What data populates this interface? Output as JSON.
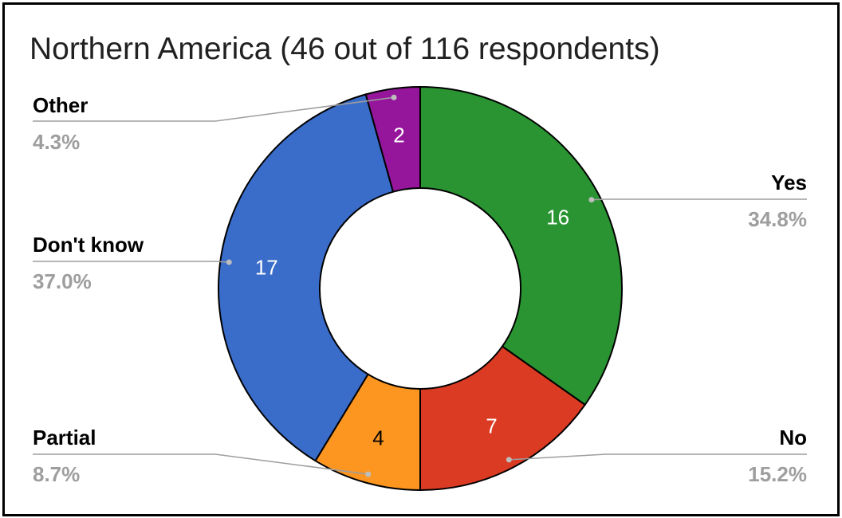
{
  "chart_data": {
    "type": "pie",
    "style": "donut",
    "title": "Northern America (46 out of 116 respondents)",
    "slices": [
      {
        "name": "Yes",
        "value": 16,
        "percent": "34.8%",
        "color": "#2a9432",
        "label_color": "#ffffff"
      },
      {
        "name": "No",
        "value": 7,
        "percent": "15.2%",
        "color": "#db3b22",
        "label_color": "#ffffff"
      },
      {
        "name": "Partial",
        "value": 4,
        "percent": "8.7%",
        "color": "#fc9621",
        "label_color": "#000000"
      },
      {
        "name": "Don't know",
        "value": 17,
        "percent": "37.0%",
        "color": "#3a6cc9",
        "label_color": "#ffffff"
      },
      {
        "name": "Other",
        "value": 2,
        "percent": "4.3%",
        "color": "#95169b",
        "label_color": "#ffffff"
      }
    ],
    "legend": "callouts"
  }
}
